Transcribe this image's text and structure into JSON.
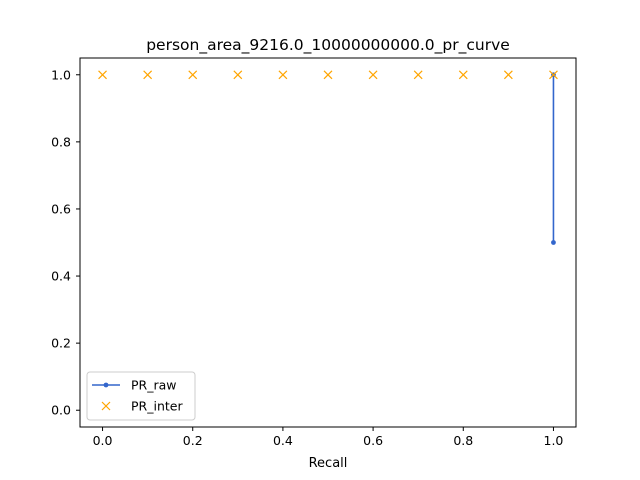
{
  "chart_data": {
    "type": "line",
    "title": "person_area_9216.0_10000000000.0_pr_curve",
    "xlabel": "Recall",
    "ylabel": "",
    "xlim": [
      -0.05,
      1.05
    ],
    "ylim": [
      -0.05,
      1.05
    ],
    "grid": false,
    "legend_position": "lower-left",
    "x_ticks": [
      0.0,
      0.2,
      0.4,
      0.6,
      0.8,
      1.0
    ],
    "x_tick_labels": [
      "0.0",
      "0.2",
      "0.4",
      "0.6",
      "0.8",
      "1.0"
    ],
    "y_ticks": [
      0.0,
      0.2,
      0.4,
      0.6,
      0.8,
      1.0
    ],
    "y_tick_labels": [
      "0.0",
      "0.2",
      "0.4",
      "0.6",
      "0.8",
      "1.0"
    ],
    "series": [
      {
        "name": "PR_raw",
        "style": "line-dot",
        "color": "#3366cc",
        "points": [
          [
            1.0,
            1.0
          ],
          [
            1.0,
            0.5
          ]
        ]
      },
      {
        "name": "PR_inter",
        "style": "x-marker",
        "color": "#ffa500",
        "points": [
          [
            0.0,
            1.0
          ],
          [
            0.1,
            1.0
          ],
          [
            0.2,
            1.0
          ],
          [
            0.3,
            1.0
          ],
          [
            0.4,
            1.0
          ],
          [
            0.5,
            1.0
          ],
          [
            0.6,
            1.0
          ],
          [
            0.7,
            1.0
          ],
          [
            0.8,
            1.0
          ],
          [
            0.9,
            1.0
          ],
          [
            1.0,
            1.0
          ]
        ]
      }
    ]
  }
}
